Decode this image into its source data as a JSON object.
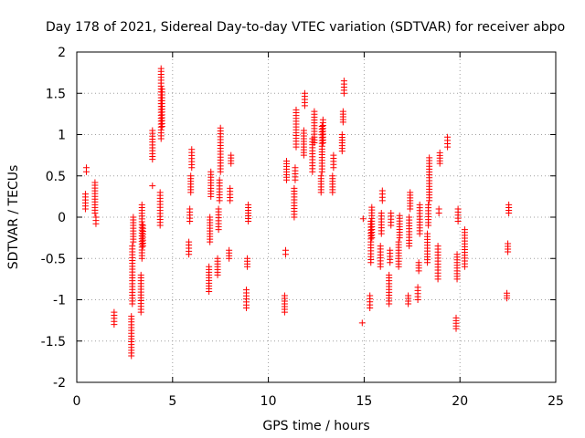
{
  "chart_data": {
    "type": "scatter",
    "title": "Day 178 of 2021, Sidereal Day-to-day VTEC variation (SDTVAR) for receiver abpo",
    "xlabel": "GPS time / hours",
    "ylabel": "SDTVAR / TECUs",
    "xlim": [
      0,
      25
    ],
    "ylim": [
      -2,
      2
    ],
    "xticks": [
      0,
      5,
      10,
      15,
      20,
      25
    ],
    "yticks": [
      -2,
      -1.5,
      -1,
      -0.5,
      0,
      0.5,
      1,
      1.5,
      2
    ],
    "ytick_labels": [
      "-2",
      "-1.5",
      "-1",
      "-0.5",
      "0",
      "0.5",
      "1",
      "1.5",
      "2"
    ],
    "grid": true,
    "marker": "+",
    "series_color": "#ff0000",
    "clusters": [
      {
        "x": 0.45,
        "ymin": 0.1,
        "ymax": 0.28
      },
      {
        "x": 0.5,
        "ymin": 0.55,
        "ymax": 0.6
      },
      {
        "x": 0.95,
        "ymin": 0.05,
        "ymax": 0.42
      },
      {
        "x": 1.0,
        "ymin": -0.08,
        "ymax": 0.0
      },
      {
        "x": 1.95,
        "ymin": -1.3,
        "ymax": -1.15
      },
      {
        "x": 2.85,
        "ymin": -1.68,
        "ymax": -1.2
      },
      {
        "x": 2.9,
        "ymin": -1.05,
        "ymax": -0.35
      },
      {
        "x": 2.95,
        "ymin": -0.3,
        "ymax": 0.0
      },
      {
        "x": 3.35,
        "ymin": -1.15,
        "ymax": -0.7
      },
      {
        "x": 3.4,
        "ymin": -0.5,
        "ymax": 0.15
      },
      {
        "x": 3.45,
        "ymin": -0.35,
        "ymax": -0.1
      },
      {
        "x": 3.95,
        "ymin": 0.38,
        "ymax": 0.38
      },
      {
        "x": 3.95,
        "ymin": 0.7,
        "ymax": 1.05
      },
      {
        "x": 4.35,
        "ymin": -0.1,
        "ymax": 0.3
      },
      {
        "x": 4.4,
        "ymin": 0.95,
        "ymax": 1.8
      },
      {
        "x": 4.45,
        "ymin": 1.1,
        "ymax": 1.55
      },
      {
        "x": 5.85,
        "ymin": -0.45,
        "ymax": -0.3
      },
      {
        "x": 5.9,
        "ymin": -0.05,
        "ymax": 0.1
      },
      {
        "x": 5.95,
        "ymin": 0.3,
        "ymax": 0.5
      },
      {
        "x": 6.0,
        "ymin": 0.6,
        "ymax": 0.82
      },
      {
        "x": 6.9,
        "ymin": -0.9,
        "ymax": -0.6
      },
      {
        "x": 6.95,
        "ymin": -0.3,
        "ymax": 0.0
      },
      {
        "x": 7.0,
        "ymin": 0.25,
        "ymax": 0.55
      },
      {
        "x": 7.35,
        "ymin": -0.7,
        "ymax": -0.5
      },
      {
        "x": 7.4,
        "ymin": -0.15,
        "ymax": 0.1
      },
      {
        "x": 7.45,
        "ymin": 0.2,
        "ymax": 0.45
      },
      {
        "x": 7.5,
        "ymin": 0.55,
        "ymax": 1.08
      },
      {
        "x": 7.95,
        "ymin": -0.5,
        "ymax": -0.4
      },
      {
        "x": 8.0,
        "ymin": 0.2,
        "ymax": 0.35
      },
      {
        "x": 8.05,
        "ymin": 0.65,
        "ymax": 0.75
      },
      {
        "x": 8.85,
        "ymin": -1.1,
        "ymax": -0.88
      },
      {
        "x": 8.9,
        "ymin": -0.6,
        "ymax": -0.5
      },
      {
        "x": 8.95,
        "ymin": -0.05,
        "ymax": 0.15
      },
      {
        "x": 10.85,
        "ymin": -1.15,
        "ymax": -0.95
      },
      {
        "x": 10.9,
        "ymin": -0.45,
        "ymax": -0.4
      },
      {
        "x": 10.95,
        "ymin": 0.45,
        "ymax": 0.68
      },
      {
        "x": 11.35,
        "ymin": 0.0,
        "ymax": 0.35
      },
      {
        "x": 11.4,
        "ymin": 0.45,
        "ymax": 0.6
      },
      {
        "x": 11.45,
        "ymin": 0.85,
        "ymax": 1.3
      },
      {
        "x": 11.85,
        "ymin": 0.75,
        "ymax": 1.05
      },
      {
        "x": 11.9,
        "ymin": 1.35,
        "ymax": 1.5
      },
      {
        "x": 12.3,
        "ymin": 0.55,
        "ymax": 0.95
      },
      {
        "x": 12.4,
        "ymin": 0.9,
        "ymax": 1.28
      },
      {
        "x": 12.75,
        "ymin": 0.3,
        "ymax": 0.5
      },
      {
        "x": 12.8,
        "ymin": 0.55,
        "ymax": 1.1
      },
      {
        "x": 12.85,
        "ymin": 0.9,
        "ymax": 1.18
      },
      {
        "x": 13.35,
        "ymin": 0.3,
        "ymax": 0.5
      },
      {
        "x": 13.4,
        "ymin": 0.6,
        "ymax": 0.75
      },
      {
        "x": 13.85,
        "ymin": 0.8,
        "ymax": 1.0
      },
      {
        "x": 13.9,
        "ymin": 1.15,
        "ymax": 1.28
      },
      {
        "x": 13.95,
        "ymin": 1.5,
        "ymax": 1.65
      },
      {
        "x": 14.9,
        "ymin": -1.28,
        "ymax": -1.28
      },
      {
        "x": 14.95,
        "ymin": -0.02,
        "ymax": -0.02
      },
      {
        "x": 15.3,
        "ymin": -1.1,
        "ymax": -0.95
      },
      {
        "x": 15.35,
        "ymin": -0.55,
        "ymax": -0.05
      },
      {
        "x": 15.4,
        "ymin": -0.25,
        "ymax": 0.12
      },
      {
        "x": 15.85,
        "ymin": -0.6,
        "ymax": -0.35
      },
      {
        "x": 15.9,
        "ymin": -0.2,
        "ymax": 0.05
      },
      {
        "x": 15.95,
        "ymin": 0.2,
        "ymax": 0.32
      },
      {
        "x": 16.3,
        "ymin": -1.05,
        "ymax": -0.7
      },
      {
        "x": 16.35,
        "ymin": -0.55,
        "ymax": -0.4
      },
      {
        "x": 16.4,
        "ymin": -0.1,
        "ymax": 0.05
      },
      {
        "x": 16.8,
        "ymin": -0.6,
        "ymax": -0.3
      },
      {
        "x": 16.85,
        "ymin": -0.25,
        "ymax": 0.02
      },
      {
        "x": 17.3,
        "ymin": -1.05,
        "ymax": -0.95
      },
      {
        "x": 17.35,
        "ymin": -0.35,
        "ymax": 0.0
      },
      {
        "x": 17.4,
        "ymin": 0.1,
        "ymax": 0.3
      },
      {
        "x": 17.8,
        "ymin": -1.0,
        "ymax": -0.85
      },
      {
        "x": 17.85,
        "ymin": -0.65,
        "ymax": -0.55
      },
      {
        "x": 17.9,
        "ymin": -0.2,
        "ymax": 0.15
      },
      {
        "x": 18.3,
        "ymin": -0.55,
        "ymax": -0.2
      },
      {
        "x": 18.35,
        "ymin": -0.1,
        "ymax": 0.15
      },
      {
        "x": 18.4,
        "ymin": 0.2,
        "ymax": 0.72
      },
      {
        "x": 18.85,
        "ymin": -0.75,
        "ymax": -0.35
      },
      {
        "x": 18.9,
        "ymin": 0.05,
        "ymax": 0.1
      },
      {
        "x": 18.95,
        "ymin": 0.65,
        "ymax": 0.78
      },
      {
        "x": 19.35,
        "ymin": 0.85,
        "ymax": 0.97
      },
      {
        "x": 19.8,
        "ymin": -1.35,
        "ymax": -1.22
      },
      {
        "x": 19.85,
        "ymin": -0.75,
        "ymax": -0.45
      },
      {
        "x": 19.9,
        "ymin": -0.05,
        "ymax": 0.1
      },
      {
        "x": 20.25,
        "ymin": -0.6,
        "ymax": -0.15
      },
      {
        "x": 22.45,
        "ymin": -0.98,
        "ymax": -0.92
      },
      {
        "x": 22.5,
        "ymin": -0.42,
        "ymax": -0.32
      },
      {
        "x": 22.55,
        "ymin": 0.05,
        "ymax": 0.15
      }
    ]
  }
}
